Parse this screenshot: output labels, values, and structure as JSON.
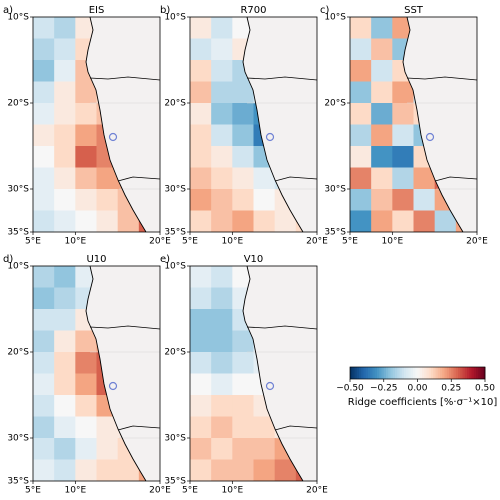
{
  "chart_data": [
    {
      "type": "heatmap",
      "panel_label": "a)",
      "title": "EIS",
      "xlim": [
        5,
        20
      ],
      "ylim": [
        -35,
        -10
      ],
      "xticks": [
        {
          "value": 5,
          "label": "5°E"
        },
        {
          "value": 10,
          "label": "10°E"
        },
        {
          "value": 20,
          "label": "20°E"
        }
      ],
      "yticks": [
        {
          "value": -10,
          "label": "10°S"
        },
        {
          "value": -20,
          "label": "20°S"
        },
        {
          "value": -30,
          "label": "30°S"
        },
        {
          "value": -35,
          "label": "35°S"
        }
      ],
      "values": [
        [
          -0.1,
          -0.15,
          0.05,
          0.1,
          null,
          null
        ],
        [
          -0.15,
          -0.1,
          0.1,
          0.05,
          null,
          null
        ],
        [
          -0.2,
          -0.05,
          0.15,
          0.1,
          null,
          null
        ],
        [
          -0.1,
          0.05,
          0.15,
          0.1,
          null,
          null
        ],
        [
          -0.05,
          0.05,
          0.1,
          0.15,
          null,
          null
        ],
        [
          0.05,
          0.1,
          0.2,
          0.25,
          0.1,
          null
        ],
        [
          0,
          0.1,
          0.3,
          0.25,
          0.2,
          null
        ],
        [
          -0.05,
          0.05,
          0.15,
          0.2,
          0.2,
          null
        ],
        [
          -0.05,
          0,
          0.05,
          0.1,
          0.15,
          0.1
        ],
        [
          -0.1,
          -0.05,
          0,
          0.05,
          0.15,
          0.3
        ]
      ]
    },
    {
      "type": "heatmap",
      "panel_label": "b)",
      "title": "R700",
      "xlim": [
        5,
        20
      ],
      "ylim": [
        -35,
        -10
      ],
      "xticks": [
        {
          "value": 5,
          "label": "5°E"
        },
        {
          "value": 10,
          "label": "10°E"
        },
        {
          "value": 20,
          "label": "20°E"
        }
      ],
      "yticks": [
        {
          "value": -10,
          "label": "10°S"
        },
        {
          "value": -20,
          "label": "20°S"
        },
        {
          "value": -30,
          "label": "30°S"
        },
        {
          "value": -35,
          "label": "35°S"
        }
      ],
      "values": [
        [
          0.05,
          -0.1,
          0,
          0.1,
          null,
          null
        ],
        [
          -0.1,
          -0.05,
          0.05,
          0.15,
          null,
          null
        ],
        [
          0.1,
          -0.1,
          -0.15,
          0.05,
          null,
          null
        ],
        [
          0.15,
          -0.15,
          -0.15,
          -0.1,
          null,
          null
        ],
        [
          0.05,
          -0.2,
          -0.25,
          -0.3,
          -0.2,
          null
        ],
        [
          0.1,
          -0.1,
          -0.2,
          -0.35,
          -0.4,
          null
        ],
        [
          0.1,
          0.05,
          -0.1,
          -0.2,
          -0.25,
          null
        ],
        [
          0.15,
          0.1,
          0.05,
          -0.05,
          -0.1,
          null
        ],
        [
          0.2,
          0.15,
          0.1,
          0,
          0.05,
          0.1
        ],
        [
          0.1,
          0.15,
          0.2,
          0.1,
          0.05,
          0.1
        ]
      ]
    },
    {
      "type": "heatmap",
      "panel_label": "c)",
      "title": "SST",
      "xlim": [
        5,
        20
      ],
      "ylim": [
        -35,
        -10
      ],
      "xticks": [
        {
          "value": 5,
          "label": "5°E"
        },
        {
          "value": 10,
          "label": "10°E"
        },
        {
          "value": 20,
          "label": "20°E"
        }
      ],
      "yticks": [
        {
          "value": -10,
          "label": "10°S"
        },
        {
          "value": -20,
          "label": "20°S"
        },
        {
          "value": -30,
          "label": "30°S"
        },
        {
          "value": -35,
          "label": "35°S"
        }
      ],
      "values": [
        [
          0.1,
          -0.2,
          0.2,
          0.25,
          null,
          null
        ],
        [
          -0.1,
          0.15,
          -0.2,
          0.3,
          null,
          null
        ],
        [
          0.2,
          -0.1,
          0.1,
          -0.15,
          null,
          null
        ],
        [
          -0.2,
          0.1,
          0.2,
          -0.1,
          null,
          null
        ],
        [
          0.1,
          -0.25,
          0.15,
          0.1,
          -0.1,
          null
        ],
        [
          -0.15,
          0.2,
          -0.1,
          -0.2,
          0.15,
          null
        ],
        [
          0.05,
          -0.3,
          -0.35,
          0.1,
          -0.2,
          null
        ],
        [
          0.25,
          0.1,
          -0.15,
          0.2,
          0.3,
          null
        ],
        [
          -0.2,
          0.15,
          0.25,
          -0.1,
          0.2,
          0.1
        ],
        [
          -0.3,
          0.2,
          0.1,
          0.25,
          -0.15,
          0.2
        ]
      ]
    },
    {
      "type": "heatmap",
      "panel_label": "d)",
      "title": "U10",
      "xlim": [
        5,
        20
      ],
      "ylim": [
        -35,
        -10
      ],
      "xticks": [
        {
          "value": 5,
          "label": "5°E"
        },
        {
          "value": 10,
          "label": "10°E"
        },
        {
          "value": 20,
          "label": "20°E"
        }
      ],
      "yticks": [
        {
          "value": -10,
          "label": "10°S"
        },
        {
          "value": -20,
          "label": "20°S"
        },
        {
          "value": -30,
          "label": "30°S"
        },
        {
          "value": -35,
          "label": "35°S"
        }
      ],
      "values": [
        [
          -0.15,
          -0.2,
          -0.05,
          0.3,
          null,
          null
        ],
        [
          -0.2,
          -0.15,
          -0.1,
          0.15,
          null,
          null
        ],
        [
          -0.1,
          -0.1,
          0.05,
          0.2,
          null,
          null
        ],
        [
          -0.15,
          0.05,
          0.15,
          0.2,
          null,
          null
        ],
        [
          -0.1,
          0.1,
          0.25,
          0.3,
          0.3,
          null
        ],
        [
          -0.05,
          0.1,
          0.2,
          0.3,
          0.45,
          null
        ],
        [
          -0.1,
          0,
          0.1,
          0.2,
          0.1,
          null
        ],
        [
          -0.15,
          -0.05,
          0,
          0.05,
          0.05,
          null
        ],
        [
          -0.1,
          -0.15,
          -0.05,
          0.05,
          0.1,
          0.05
        ],
        [
          -0.05,
          -0.1,
          0.05,
          0.1,
          0.1,
          0.2
        ]
      ]
    },
    {
      "type": "heatmap",
      "panel_label": "e)",
      "title": "V10",
      "xlim": [
        5,
        20
      ],
      "ylim": [
        -35,
        -10
      ],
      "xticks": [
        {
          "value": 5,
          "label": "5°E"
        },
        {
          "value": 10,
          "label": "10°E"
        },
        {
          "value": 20,
          "label": "20°E"
        }
      ],
      "yticks": [
        {
          "value": -10,
          "label": "10°S"
        },
        {
          "value": -20,
          "label": "20°S"
        },
        {
          "value": -30,
          "label": "30°S"
        },
        {
          "value": -35,
          "label": "35°S"
        }
      ],
      "values": [
        [
          -0.05,
          -0.1,
          0,
          0.3,
          null,
          null
        ],
        [
          -0.1,
          -0.15,
          -0.05,
          0.05,
          null,
          null
        ],
        [
          -0.2,
          -0.2,
          -0.1,
          -0.05,
          null,
          null
        ],
        [
          -0.2,
          -0.2,
          -0.15,
          -0.05,
          null,
          null
        ],
        [
          -0.1,
          -0.15,
          -0.1,
          -0.05,
          -0.1,
          null
        ],
        [
          0,
          -0.05,
          0,
          0,
          -0.05,
          null
        ],
        [
          0.05,
          0.1,
          0.1,
          0.05,
          0,
          null
        ],
        [
          0.1,
          0.15,
          0.1,
          0.1,
          0.05,
          null
        ],
        [
          0.15,
          0.1,
          0.15,
          0.15,
          0.2,
          0.1
        ],
        [
          0.1,
          0.15,
          0.15,
          0.2,
          0.25,
          0.3
        ]
      ]
    },
    {
      "type": "colorbar",
      "label": "Ridge coefficients [%·σ⁻¹×10]",
      "xlim": [
        -0.5,
        0.5
      ],
      "xticks": [
        {
          "value": -0.5,
          "label": "−0.50"
        },
        {
          "value": -0.25,
          "label": "−0.25"
        },
        {
          "value": 0,
          "label": "0.00"
        },
        {
          "value": 0.25,
          "label": "0.25"
        },
        {
          "value": 0.5,
          "label": "0.50"
        }
      ],
      "colormap": [
        "#053061",
        "#2166ac",
        "#4393c3",
        "#92c5de",
        "#d1e5f0",
        "#f7f7f7",
        "#fddbc7",
        "#f4a582",
        "#d6604d",
        "#b2182b",
        "#67001f"
      ]
    }
  ]
}
